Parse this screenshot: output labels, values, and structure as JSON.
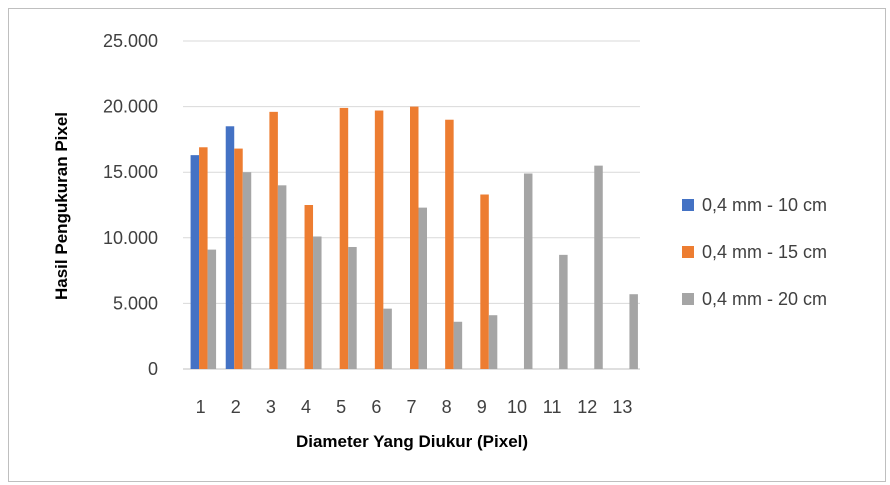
{
  "chart_data": {
    "type": "bar",
    "xlabel": "Diameter Yang Diukur (Pixel)",
    "ylabel": "Hasil Pengukuran Pixel",
    "ylim": [
      0,
      25000
    ],
    "yticks": [
      0,
      5000,
      10000,
      15000,
      20000,
      25000
    ],
    "ytick_labels": [
      "0",
      "5.000",
      "10.000",
      "15.000",
      "20.000",
      "25.000"
    ],
    "categories": [
      "1",
      "2",
      "3",
      "4",
      "5",
      "6",
      "7",
      "8",
      "9",
      "10",
      "11",
      "12",
      "13"
    ],
    "grid": "horizontal",
    "legend_position": "right",
    "series": [
      {
        "name": "0,4 mm - 10 cm",
        "color": "#4472C4",
        "values": [
          16300,
          18500,
          null,
          null,
          null,
          null,
          null,
          null,
          null,
          null,
          null,
          null,
          null
        ]
      },
      {
        "name": "0,4 mm - 15 cm",
        "color": "#ED7D31",
        "values": [
          16900,
          16800,
          19600,
          12500,
          19900,
          19700,
          20000,
          19000,
          13300,
          null,
          null,
          null,
          null
        ]
      },
      {
        "name": "0,4 mm - 20 cm",
        "color": "#A5A5A5",
        "values": [
          9100,
          15000,
          14000,
          10100,
          9300,
          4600,
          12300,
          3600,
          4100,
          14900,
          8700,
          15500,
          5700
        ]
      }
    ]
  }
}
